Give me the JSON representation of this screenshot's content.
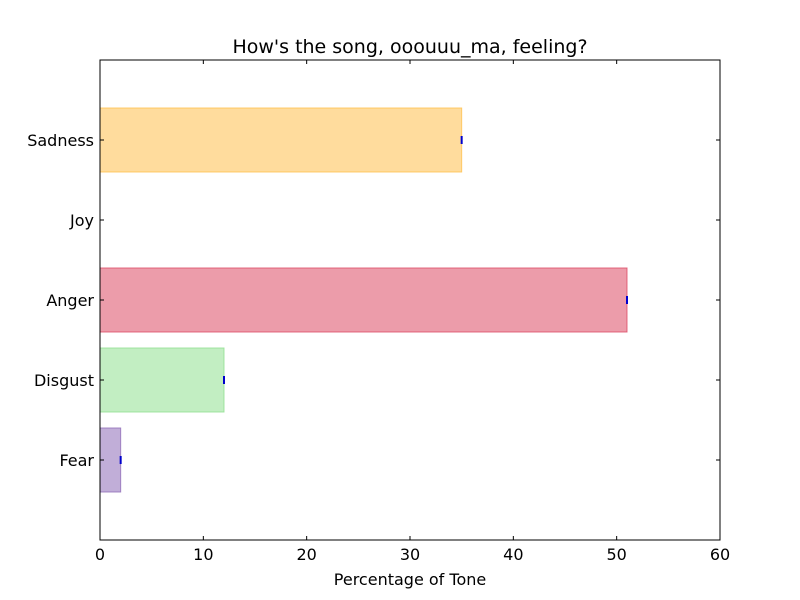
{
  "chart_data": {
    "type": "bar",
    "orientation": "horizontal",
    "title": "How's the song, ooouuu_ma, feeling?",
    "xlabel": "Percentage of Tone",
    "ylabel": "",
    "categories": [
      "Fear",
      "Disgust",
      "Anger",
      "Joy",
      "Sadness"
    ],
    "values": [
      2,
      12,
      51,
      0,
      35
    ],
    "xlim": [
      0,
      60
    ],
    "xticks": [
      0,
      10,
      20,
      30,
      40,
      50,
      60
    ],
    "grid": false,
    "legend": "none",
    "bar_colors": [
      "#8e6bb8",
      "#90e090",
      "#dc4a64",
      "#ffffff",
      "#ffc04c"
    ],
    "bar_fill_opacity": 0.55,
    "error_marker_color": "#0000cc"
  }
}
